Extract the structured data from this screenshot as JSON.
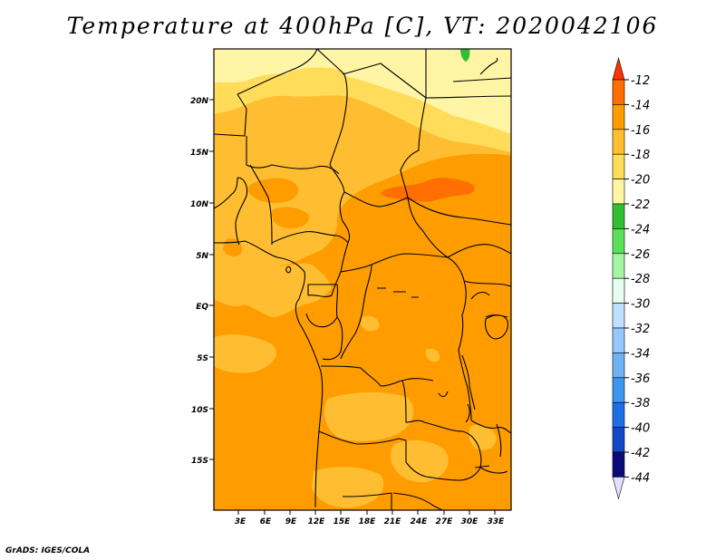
{
  "title": "Temperature at 400hPa [C], VT: 2020042106",
  "credit": "GrADS: IGES/COLA",
  "map": {
    "lat_labels": [
      "20N",
      "15N",
      "10N",
      "5N",
      "EQ",
      "5S",
      "10S",
      "15S"
    ],
    "lon_labels": [
      "3E",
      "6E",
      "9E",
      "12E",
      "15E",
      "18E",
      "21E",
      "24E",
      "27E",
      "30E",
      "33E"
    ]
  },
  "colorbar": {
    "labels": [
      "-12",
      "-14",
      "-16",
      "-18",
      "-20",
      "-22",
      "-24",
      "-26",
      "-28",
      "-30",
      "-32",
      "-34",
      "-36",
      "-38",
      "-40",
      "-42",
      "-44"
    ],
    "colors": [
      "#ff3200",
      "#ff6e00",
      "#ff9d00",
      "#ffbe32",
      "#ffdc5a",
      "#fff5a5",
      "#32be32",
      "#5ae15a",
      "#a5f5a5",
      "#e6fff0",
      "#bee1ff",
      "#96c8ff",
      "#6eb4f5",
      "#3c96f0",
      "#1e6ee6",
      "#1446c8",
      "#0a0a78",
      "#e1e1ff"
    ]
  },
  "legend_palette": {
    "fill_m12_to_m14": "#ff6e00",
    "fill_m14_to_m16": "#ff9d00",
    "fill_m16_to_m18": "#ffbe32",
    "fill_m18_to_m20": "#ffdc5a",
    "fill_m20_to_m22": "#fff5a5",
    "fill_above_m12": "#ff3200"
  }
}
